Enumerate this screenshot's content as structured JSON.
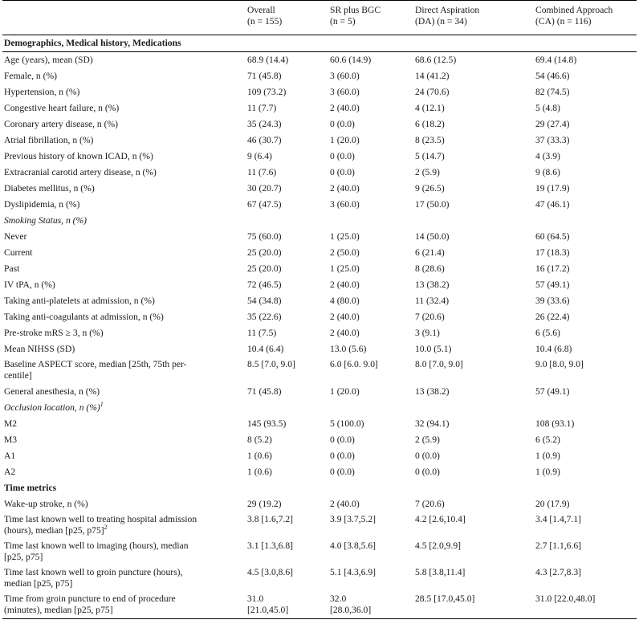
{
  "columns": [
    {
      "line1": "",
      "line2": ""
    },
    {
      "line1": "Overall",
      "line2": "(n = 155)"
    },
    {
      "line1": "SR plus BGC",
      "line2": "(n = 5)"
    },
    {
      "line1": "Direct Aspiration",
      "line2": "(DA) (n = 34)"
    },
    {
      "line1": "Combined Approach",
      "line2": "(CA) (n = 116)"
    }
  ],
  "rows": [
    {
      "type": "section",
      "label": "Demographics, Medical history, Medications",
      "values": [
        "",
        "",
        "",
        ""
      ]
    },
    {
      "type": "data",
      "label": "Age (years), mean (SD)",
      "values": [
        "68.9 (14.4)",
        "60.6 (14.9)",
        "68.6 (12.5)",
        "69.4 (14.8)"
      ]
    },
    {
      "type": "data",
      "label": "Female, n (%)",
      "values": [
        "71 (45.8)",
        "3 (60.0)",
        "14 (41.2)",
        "54 (46.6)"
      ]
    },
    {
      "type": "data",
      "label": "Hypertension, n (%)",
      "values": [
        "109 (73.2)",
        "3 (60.0)",
        "24 (70.6)",
        "82 (74.5)"
      ]
    },
    {
      "type": "data",
      "label": "Congestive heart failure, n (%)",
      "values": [
        "11 (7.7)",
        "2 (40.0)",
        "4 (12.1)",
        "5 (4.8)"
      ]
    },
    {
      "type": "data",
      "label": "Coronary artery disease, n (%)",
      "values": [
        "35 (24.3)",
        "0 (0.0)",
        "6 (18.2)",
        "29 (27.4)"
      ]
    },
    {
      "type": "data",
      "label": "Atrial fibrillation, n (%)",
      "values": [
        "46 (30.7)",
        "1 (20.0)",
        "8 (23.5)",
        "37 (33.3)"
      ]
    },
    {
      "type": "data",
      "label": "Previous history of known ICAD, n (%)",
      "values": [
        "9 (6.4)",
        "0 (0.0)",
        "5 (14.7)",
        "4 (3.9)"
      ]
    },
    {
      "type": "data",
      "label": "Extracranial carotid artery disease, n (%)",
      "values": [
        "11 (7.6)",
        "0 (0.0)",
        "2 (5.9)",
        "9 (8.6)"
      ]
    },
    {
      "type": "data",
      "label": "Diabetes mellitus, n (%)",
      "values": [
        "30 (20.7)",
        "2 (40.0)",
        "9 (26.5)",
        "19 (17.9)"
      ]
    },
    {
      "type": "data",
      "label": "Dyslipidemia, n (%)",
      "values": [
        "67 (47.5)",
        "3 (60.0)",
        "17 (50.0)",
        "47 (46.1)"
      ]
    },
    {
      "type": "italic",
      "label": "Smoking Status, n (%)",
      "values": [
        "",
        "",
        "",
        ""
      ]
    },
    {
      "type": "data",
      "label": "Never",
      "values": [
        "75 (60.0)",
        "1 (25.0)",
        "14 (50.0)",
        "60 (64.5)"
      ]
    },
    {
      "type": "data",
      "label": "Current",
      "values": [
        "25 (20.0)",
        "2 (50.0)",
        "6 (21.4)",
        "17 (18.3)"
      ]
    },
    {
      "type": "data",
      "label": "Past",
      "values": [
        "25 (20.0)",
        "1 (25.0)",
        "8 (28.6)",
        "16 (17.2)"
      ]
    },
    {
      "type": "data",
      "label": "IV tPA, n (%)",
      "values": [
        "72 (46.5)",
        "2 (40.0)",
        "13 (38.2)",
        "57 (49.1)"
      ]
    },
    {
      "type": "data",
      "label": "Taking anti-platelets at admission, n (%)",
      "values": [
        "54 (34.8)",
        "4 (80.0)",
        "11 (32.4)",
        "39 (33.6)"
      ]
    },
    {
      "type": "data",
      "label": "Taking anti-coagulants at admission, n (%)",
      "values": [
        "35 (22.6)",
        "2 (40.0)",
        "7 (20.6)",
        "26 (22.4)"
      ]
    },
    {
      "type": "data",
      "label": "Pre-stroke mRS ≥ 3, n (%)",
      "values": [
        "11 (7.5)",
        "2 (40.0)",
        "3 (9.1)",
        "6 (5.6)"
      ]
    },
    {
      "type": "data",
      "label": "Mean NIHSS (SD)",
      "values": [
        "10.4 (6.4)",
        "13.0 (5.6)",
        "10.0 (5.1)",
        "10.4 (6.8)"
      ]
    },
    {
      "type": "two",
      "label": "Baseline ASPECT score, median [25th, 75th per-",
      "label2": "centile]",
      "values": [
        "8.5 [7.0, 9.0]",
        "6.0 [6.0. 9.0]",
        "8.0 [7.0, 9.0]",
        "9.0 [8.0, 9.0]"
      ],
      "values2": [
        "",
        "",
        "",
        ""
      ]
    },
    {
      "type": "data",
      "label": "General anesthesia, n (%)",
      "values": [
        "71 (45.8)",
        "1 (20.0)",
        "13 (38.2)",
        "57 (49.1)"
      ]
    },
    {
      "type": "italic",
      "label": "Occlusion location, n (%)",
      "sup": "1",
      "values": [
        "",
        "",
        "",
        ""
      ]
    },
    {
      "type": "data",
      "label": "M2",
      "values": [
        "145 (93.5)",
        "5 (100.0)",
        "32 (94.1)",
        "108 (93.1)"
      ]
    },
    {
      "type": "data",
      "label": "M3",
      "values": [
        "8 (5.2)",
        "0 (0.0)",
        "2 (5.9)",
        "6 (5.2)"
      ]
    },
    {
      "type": "data",
      "label": "A1",
      "values": [
        "1 (0.6)",
        "0 (0.0)",
        "0 (0.0)",
        "1 (0.9)"
      ]
    },
    {
      "type": "data",
      "label": "A2",
      "values": [
        "1 (0.6)",
        "0 (0.0)",
        "0 (0.0)",
        "1 (0.9)"
      ]
    },
    {
      "type": "section",
      "label": "Time metrics",
      "values": [
        "",
        "",
        "",
        ""
      ]
    },
    {
      "type": "data",
      "label": "Wake-up stroke, n (%)",
      "values": [
        "29 (19.2)",
        "2 (40.0)",
        "7 (20.6)",
        "20 (17.9)"
      ]
    },
    {
      "type": "two",
      "label": "Time last known well to treating hospital admission",
      "label2": "(hours), median [p25, p75]",
      "sup2": "2",
      "values": [
        "3.8 [1.6,7.2]",
        "3.9 [3.7,5.2]",
        "4.2 [2.6,10.4]",
        "3.4 [1.4,7.1]"
      ],
      "values2": [
        "",
        "",
        "",
        ""
      ]
    },
    {
      "type": "two",
      "label": "Time last known well to imaging (hours), median",
      "label2": "[p25, p75]",
      "values": [
        "3.1 [1.3,6.8]",
        "4.0 [3.8,5.6]",
        "4.5 [2.0,9.9]",
        "2.7 [1.1,6.6]"
      ],
      "values2": [
        "",
        "",
        "",
        ""
      ]
    },
    {
      "type": "two",
      "label": "Time last known well to groin puncture (hours),",
      "label2": "median [p25, p75]",
      "values": [
        "4.5 [3.0,8.6]",
        "5.1 [4.3,6.9]",
        "5.8 [3.8,11.4]",
        "4.3 [2.7,8.3]"
      ],
      "values2": [
        "",
        "",
        "",
        ""
      ]
    },
    {
      "type": "two",
      "label": "Time from groin puncture to end of procedure",
      "label2": "(minutes), median [p25, p75]",
      "values": [
        "31.0",
        "32.0",
        "28.5 [17.0,45.0]",
        "31.0 [22.0,48.0]"
      ],
      "values2": [
        "[21.0,45.0]",
        "[28.0,36.0]",
        "",
        ""
      ]
    }
  ]
}
